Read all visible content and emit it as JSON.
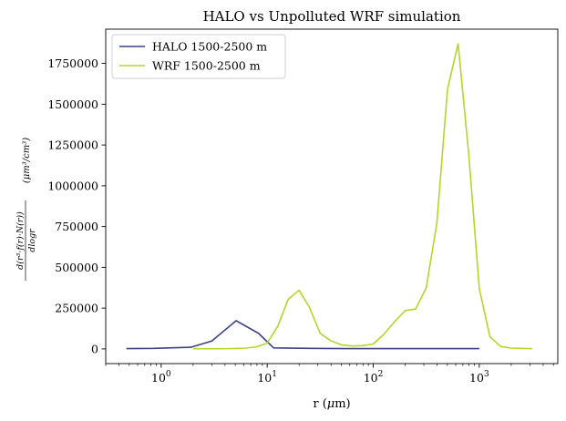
{
  "chart_data": {
    "type": "line",
    "title": "HALO vs Unpolluted WRF simulation",
    "xlabel": "r (μm)",
    "ylabel": "d(r³·f(r)·N(r)) / dlogr (μm³/cm³)",
    "xscale": "log",
    "xlim": [
      0.3,
      5500
    ],
    "ylim": [
      -90000,
      1960000
    ],
    "x_ticks": [
      {
        "value": 1,
        "base": "10",
        "exp": "0"
      },
      {
        "value": 10,
        "base": "10",
        "exp": "1"
      },
      {
        "value": 100,
        "base": "10",
        "exp": "2"
      },
      {
        "value": 1000,
        "base": "10",
        "exp": "3"
      }
    ],
    "y_ticks": [
      {
        "value": 0,
        "label": "0"
      },
      {
        "value": 250000,
        "label": "250000"
      },
      {
        "value": 500000,
        "label": "500000"
      },
      {
        "value": 750000,
        "label": "750000"
      },
      {
        "value": 1000000,
        "label": "1000000"
      },
      {
        "value": 1250000,
        "label": "1250000"
      },
      {
        "value": 1500000,
        "label": "1500000"
      },
      {
        "value": 1750000,
        "label": "1750000"
      }
    ],
    "legend_position": "top-left",
    "grid": false,
    "series": [
      {
        "name": "HALO 1500-2500 m",
        "color": "#3a4282",
        "x": [
          0.47,
          0.85,
          1.9,
          3.0,
          5.1,
          8.3,
          11.5,
          25,
          60,
          150,
          400,
          1000
        ],
        "y": [
          2000,
          3000,
          10000,
          48000,
          173000,
          95000,
          6000,
          3000,
          2000,
          2000,
          2000,
          2000
        ]
      },
      {
        "name": "WRF 1500-2500 m",
        "color": "#b2d629",
        "x": [
          2.0,
          2.5,
          3.2,
          4.0,
          5.0,
          6.3,
          7.9,
          10,
          12.6,
          15.8,
          20,
          25,
          31.6,
          39.8,
          50,
          63,
          79,
          100,
          126,
          158,
          200,
          251,
          316,
          398,
          501,
          631,
          794,
          1000,
          1259,
          1585,
          1995,
          2512,
          3162
        ],
        "y": [
          1000,
          1000,
          1000,
          1500,
          2500,
          5000,
          12000,
          35000,
          140000,
          305000,
          360000,
          255000,
          95000,
          50000,
          25000,
          18000,
          20000,
          30000,
          90000,
          165000,
          235000,
          245000,
          375000,
          770000,
          1590000,
          1870000,
          1200000,
          370000,
          75000,
          15000,
          5000,
          3000,
          2000
        ]
      }
    ]
  }
}
